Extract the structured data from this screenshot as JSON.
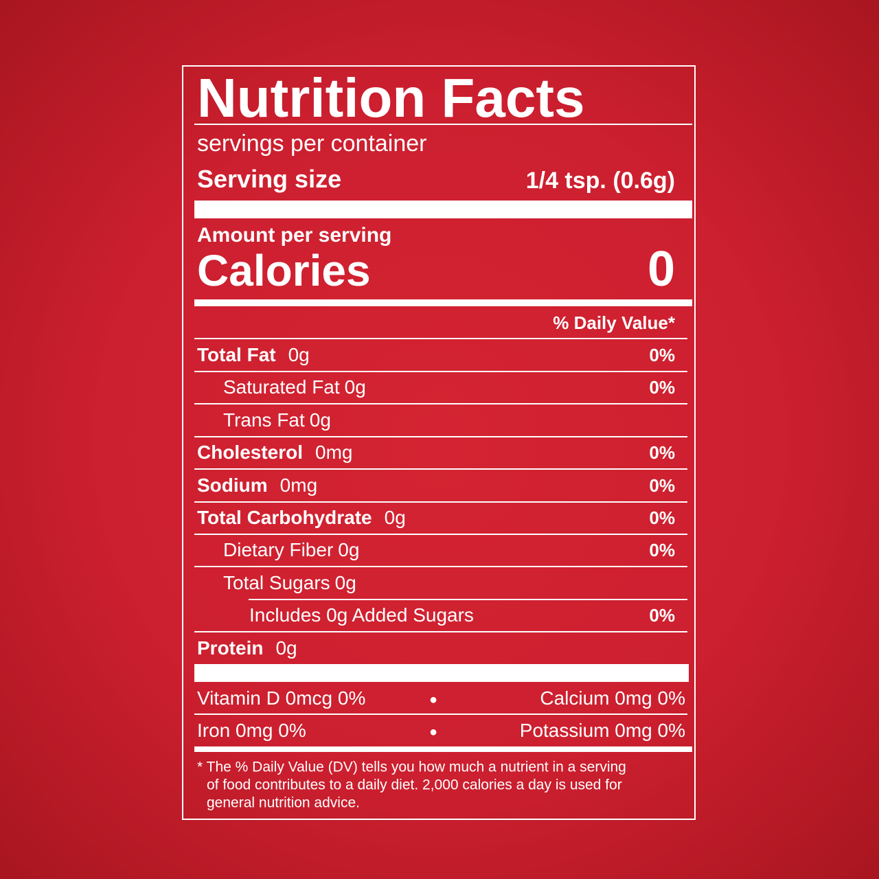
{
  "label": {
    "title": "Nutrition Facts",
    "servings_per_container": "servings per container",
    "serving_size": {
      "label": "Serving size",
      "value": "1/4 tsp. (0.6g)"
    },
    "amount_per_serving": "Amount per serving",
    "calories": {
      "label": "Calories",
      "value": 0
    },
    "daily_value_header": "% Daily Value*",
    "nutrients": [
      {
        "name": "Total Fat",
        "amount": "0g",
        "dv": "0%"
      },
      {
        "name": "Saturated Fat",
        "amount": "0g",
        "dv": "0%"
      },
      {
        "name": "Trans Fat",
        "amount": "0g"
      },
      {
        "name": "Cholesterol",
        "amount": "0mg",
        "dv": "0%"
      },
      {
        "name": "Sodium",
        "amount": "0mg",
        "dv": "0%"
      },
      {
        "name": "Total Carbohydrate",
        "amount": "0g",
        "dv": "0%"
      },
      {
        "name": "Dietary Fiber",
        "amount": "0g",
        "dv": "0%"
      },
      {
        "name": "Total Sugars",
        "amount": "0g"
      },
      {
        "name": "Includes 0g Added Sugars",
        "dv": "0%"
      },
      {
        "name": "Protein",
        "amount": "0g"
      }
    ],
    "vitamins": [
      [
        "Vitamin D 0mcg 0%",
        "Calcium 0mg 0%"
      ],
      [
        "Iron 0mg 0%",
        "Potassium 0mg 0%"
      ]
    ],
    "footnote": [
      "* The % Daily Value (DV) tells you how much a nutrient in a serving",
      "of food contributes to a daily diet. 2,000 calories a day is used for",
      "general nutrition advice."
    ]
  }
}
